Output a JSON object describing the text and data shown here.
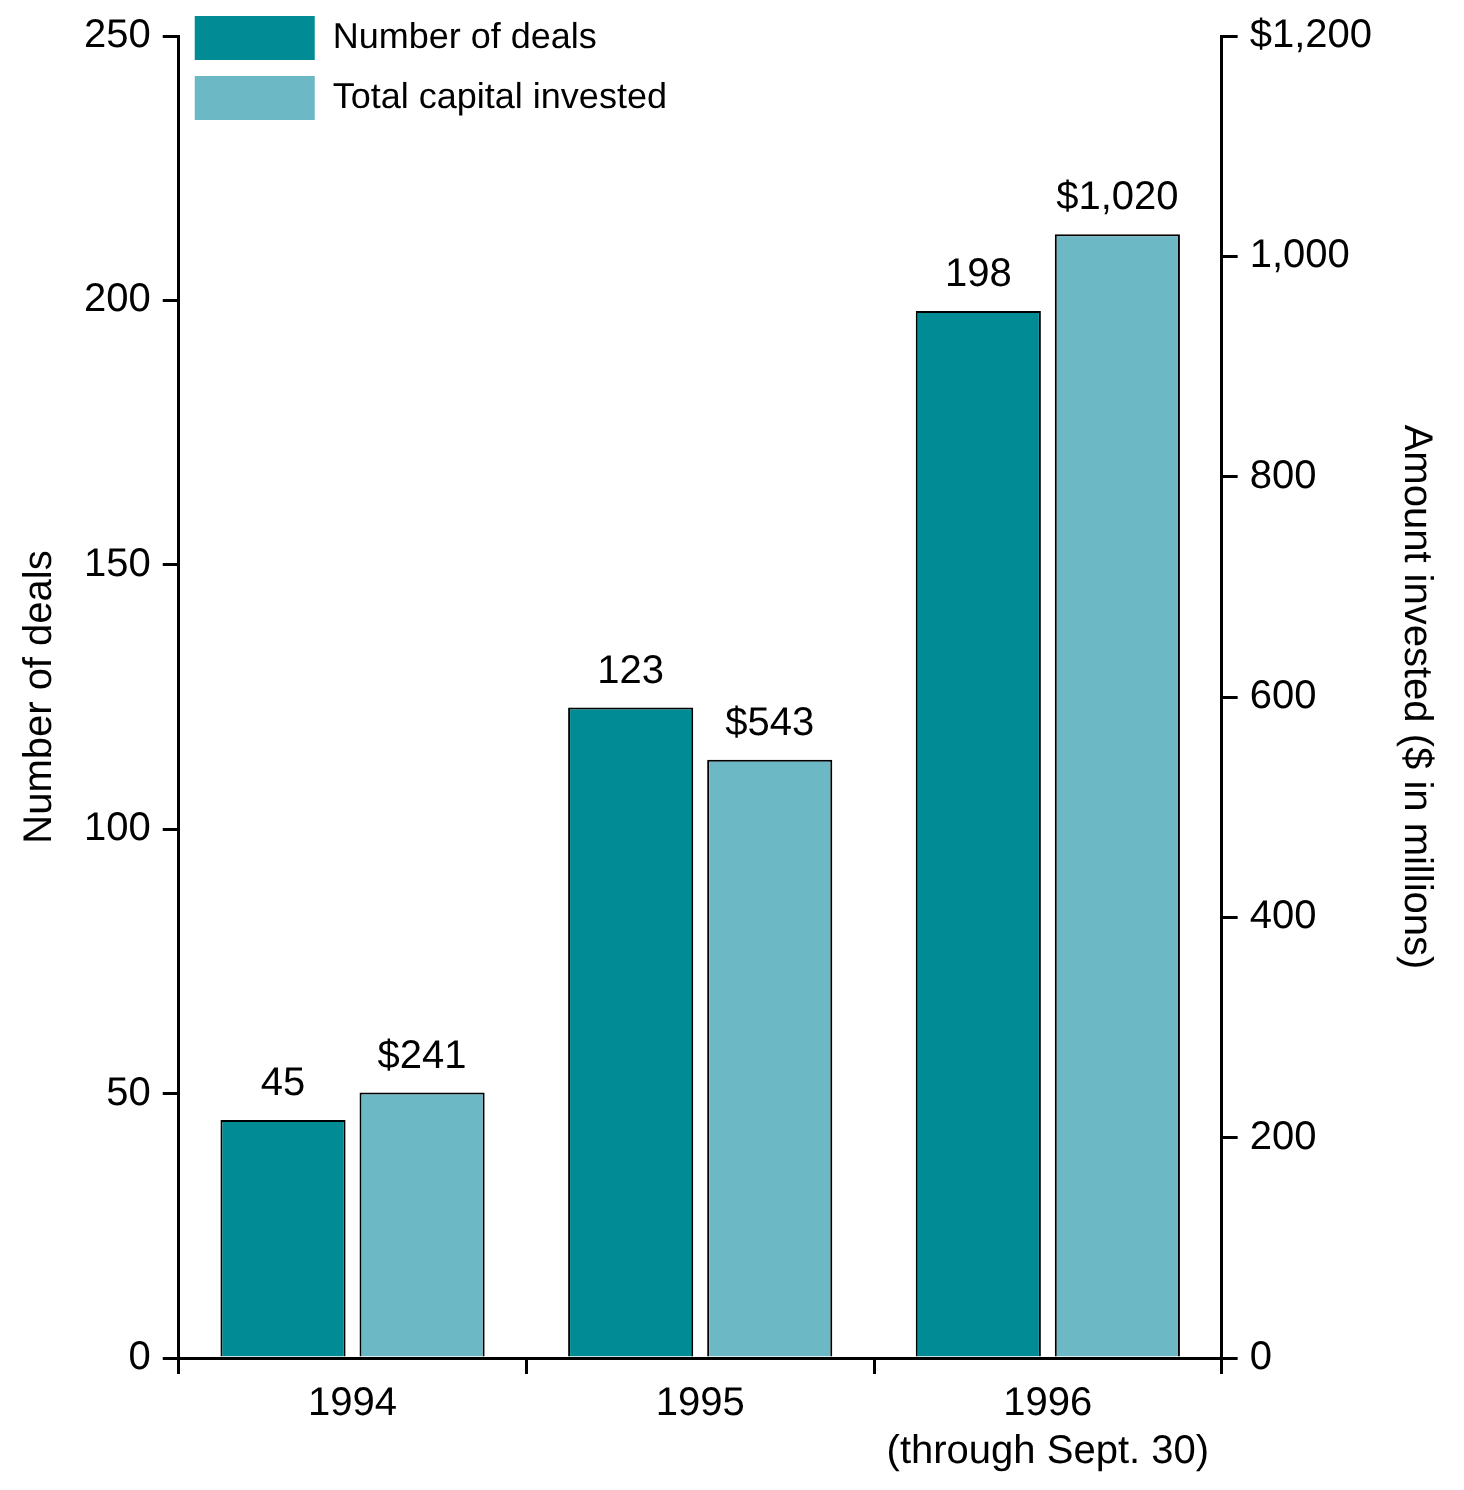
{
  "chart_data": {
    "type": "bar",
    "categories": [
      "1994",
      "1995",
      "1996\n(through Sept. 30)"
    ],
    "series": [
      {
        "name": "Number of deals",
        "color": "#008b95",
        "values": [
          45,
          123,
          198
        ],
        "value_labels": [
          "45",
          "123",
          "198"
        ]
      },
      {
        "name": "Total capital invested",
        "color": "#6cb8c4",
        "values": [
          241,
          543,
          1020
        ],
        "axis": "y2",
        "value_labels": [
          "$241",
          "$543",
          "$1,020"
        ]
      }
    ],
    "ylabel": "Number of deals",
    "y2label": "Amount invested ($ in millions)",
    "ylim": [
      0,
      250
    ],
    "yticks": [
      0,
      50,
      100,
      150,
      200,
      250
    ],
    "y2lim": [
      0,
      1200
    ],
    "y2ticks": [
      0,
      200,
      400,
      600,
      800,
      {
        "value": 1000,
        "label": "1,000"
      },
      {
        "value": 1200,
        "label": "$1,200"
      }
    ],
    "grid": false,
    "legend": "top left"
  }
}
